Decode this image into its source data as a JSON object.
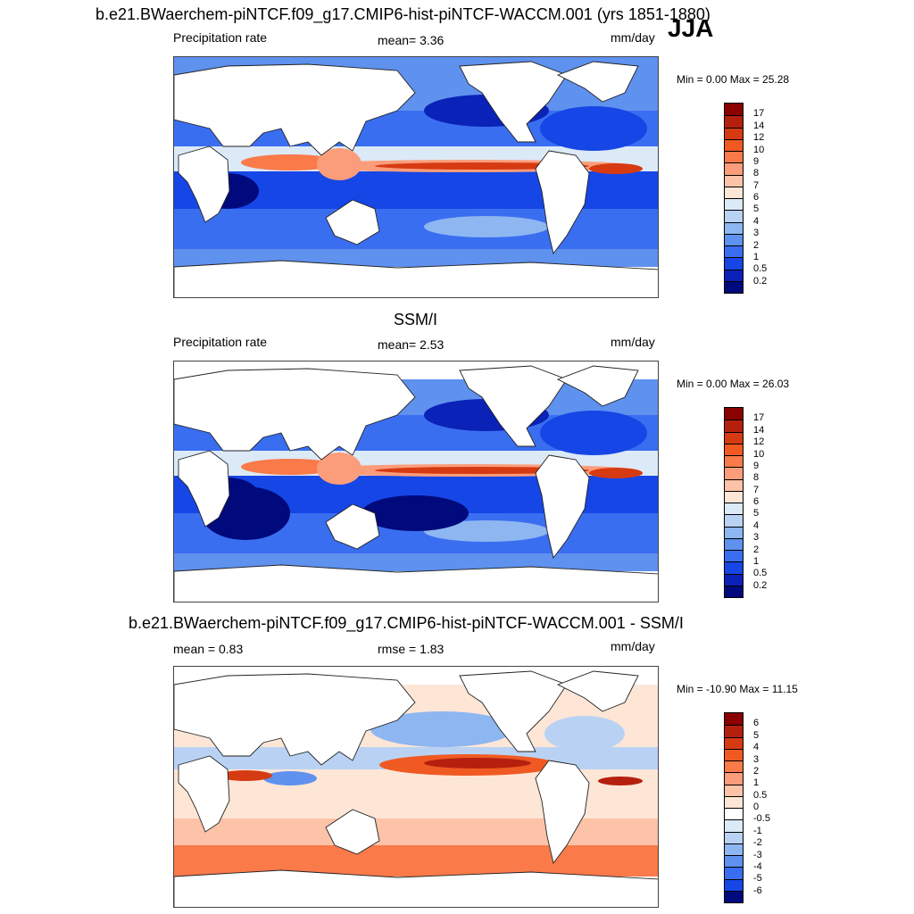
{
  "header": {
    "title": "b.e21.BWaerchem-piNTCF.f09_g17.CMIP6-hist-piNTCF-WACCM.001 (yrs 1851-1880)",
    "season": "JJA"
  },
  "panels": [
    {
      "name": "model",
      "left_label": "Precipitation rate",
      "center_label": "mean=   3.36",
      "units": "mm/day",
      "minmax": "Min =   0.00 Max =  25.28",
      "levels": [
        "17",
        "14",
        "12",
        "10",
        "9",
        "8",
        "7",
        "6",
        "5",
        "4",
        "3",
        "2",
        "1",
        "0.5",
        "0.2"
      ],
      "colors": [
        "#8b0000",
        "#b5200e",
        "#d63a12",
        "#f05a22",
        "#fa7a4a",
        "#fb9d7a",
        "#fcc3a8",
        "#fde6d6",
        "#dce9f7",
        "#b9d2f4",
        "#8eb6f1",
        "#5f91ee",
        "#3a6ef0",
        "#1646e6",
        "#0a22b8",
        "#000a7d"
      ],
      "style": "model"
    },
    {
      "name": "obs",
      "heading": "SSM/I",
      "left_label": "Precipitation rate",
      "center_label": "mean=   2.53",
      "units": "mm/day",
      "minmax": "Min =   0.00 Max =  26.03",
      "levels": [
        "17",
        "14",
        "12",
        "10",
        "9",
        "8",
        "7",
        "6",
        "5",
        "4",
        "3",
        "2",
        "1",
        "0.5",
        "0.2"
      ],
      "colors": [
        "#8b0000",
        "#b5200e",
        "#d63a12",
        "#f05a22",
        "#fa7a4a",
        "#fb9d7a",
        "#fcc3a8",
        "#fde6d6",
        "#dce9f7",
        "#b9d2f4",
        "#8eb6f1",
        "#5f91ee",
        "#3a6ef0",
        "#1646e6",
        "#0a22b8",
        "#000a7d"
      ],
      "style": "obs"
    },
    {
      "name": "diff",
      "heading": "b.e21.BWaerchem-piNTCF.f09_g17.CMIP6-hist-piNTCF-WACCM.001 - SSM/I",
      "left_label": "mean =   0.83",
      "center_label": "rmse =   1.83",
      "units": "mm/day",
      "minmax": "Min = -10.90 Max =  11.15",
      "levels": [
        "6",
        "5",
        "4",
        "3",
        "2",
        "1",
        "0.5",
        "0",
        "-0.5",
        "-1",
        "-2",
        "-3",
        "-4",
        "-5",
        "-6"
      ],
      "colors": [
        "#8b0000",
        "#b5200e",
        "#d63a12",
        "#f05a22",
        "#fa7a4a",
        "#fb9d7a",
        "#fcc3a8",
        "#fde6d6",
        "#ffffff",
        "#dce9f7",
        "#b9d2f4",
        "#8eb6f1",
        "#5f91ee",
        "#3a6ef0",
        "#1646e6",
        "#000a7d"
      ],
      "style": "diff"
    }
  ]
}
